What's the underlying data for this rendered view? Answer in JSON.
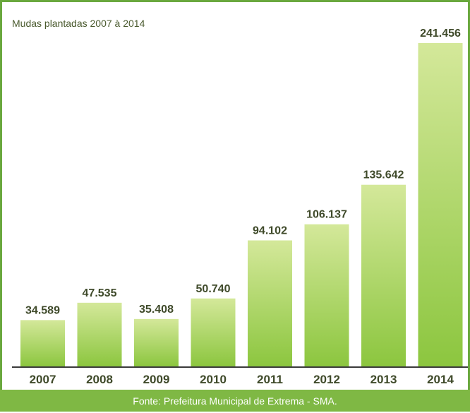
{
  "chart_data": {
    "type": "bar",
    "title": "Mudas plantadas 2007 à 2014",
    "categories": [
      "2007",
      "2008",
      "2009",
      "2010",
      "2011",
      "2012",
      "2013",
      "2014"
    ],
    "values": [
      34589,
      47535,
      35408,
      50740,
      94102,
      106137,
      135642,
      241456
    ],
    "value_labels": [
      "34.589",
      "47.535",
      "35.408",
      "50.740",
      "94.102",
      "106.137",
      "135.642",
      "241.456"
    ],
    "ylim": [
      0,
      250000
    ],
    "grid": false,
    "legend": "none",
    "bar_color_top": "#d4e89a",
    "bar_color_bottom": "#8cc63f"
  },
  "footer": {
    "source": "Fonte: Prefeitura Municipal de Extrema - SMA."
  },
  "colors": {
    "border": "#6aa83e",
    "footer_bg": "#7fb844",
    "label_text": "#3f4a2a",
    "baseline": "#3a3a3a"
  }
}
